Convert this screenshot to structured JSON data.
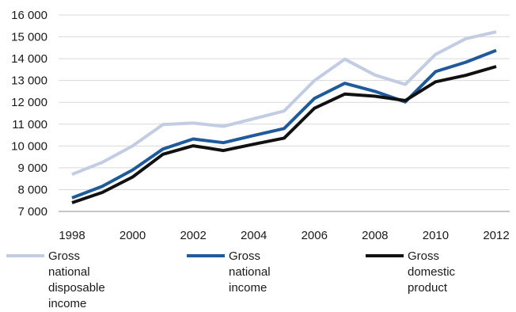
{
  "chart_data": {
    "type": "line",
    "x": [
      1998,
      1999,
      2000,
      2001,
      2002,
      2003,
      2004,
      2005,
      2006,
      2007,
      2008,
      2009,
      2010,
      2011,
      2012
    ],
    "x_tick_labels": [
      "1998",
      "2000",
      "2002",
      "2004",
      "2006",
      "2008",
      "2010",
      "2012"
    ],
    "y_tick_labels": [
      "7 000",
      "8 000",
      "9 000",
      "10 000",
      "11 000",
      "12 000",
      "13 000",
      "14 000",
      "15 000",
      "16 000"
    ],
    "ylim": [
      7000,
      16000
    ],
    "grid": "horizontal",
    "legend_position": "bottom",
    "series": [
      {
        "name": "Gross national disposable income",
        "color": "#c2cce3",
        "values": [
          8700,
          9250,
          10000,
          10980,
          11050,
          10900,
          11250,
          11600,
          13000,
          13980,
          13250,
          12820,
          14200,
          14920,
          15230
        ]
      },
      {
        "name": "Gross national income",
        "color": "#1f5a9b",
        "values": [
          7620,
          8150,
          8900,
          9860,
          10320,
          10150,
          10480,
          10800,
          12180,
          12870,
          12500,
          12020,
          13410,
          13840,
          14380
        ]
      },
      {
        "name": "Gross domestic product",
        "color": "#111111",
        "values": [
          7400,
          7870,
          8580,
          9620,
          10010,
          9790,
          10080,
          10360,
          11730,
          12380,
          12280,
          12080,
          12940,
          13240,
          13640
        ]
      }
    ]
  },
  "legend": [
    {
      "label": "Gross national\ndisposable income"
    },
    {
      "label": "Gross national\nincome"
    },
    {
      "label": "Gross domestic\nproduct"
    }
  ]
}
